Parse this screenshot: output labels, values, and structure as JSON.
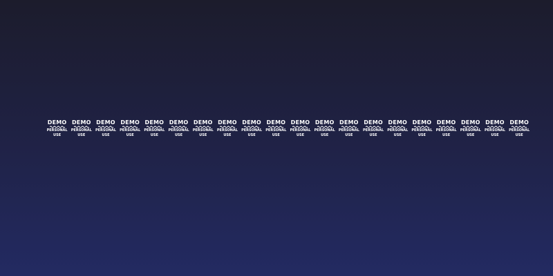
{
  "background": {
    "top_color": "#1c1c2c",
    "bottom_color": "#232a62"
  },
  "stamps": [
    {
      "line1": "DEMO",
      "line2": "PERSONAL",
      "line3": "USE"
    },
    {
      "line1": "DEMO",
      "line2": "PERSONAL",
      "line3": "USE"
    },
    {
      "line1": "DEMO",
      "line2": "PERSONAL",
      "line3": "USE"
    },
    {
      "line1": "DEMO",
      "line2": "PERSONAL",
      "line3": "USE"
    },
    {
      "line1": "DEMO",
      "line2": "PERSONAL",
      "line3": "USE"
    },
    {
      "line1": "DEMO",
      "line2": "PERSONAL",
      "line3": "USE"
    },
    {
      "line1": "DEMO",
      "line2": "PERSONAL",
      "line3": "USE"
    },
    {
      "line1": "DEMO",
      "line2": "PERSONAL",
      "line3": "USE"
    },
    {
      "line1": "DEMO",
      "line2": "PERSONAL",
      "line3": "USE"
    },
    {
      "line1": "DEMO",
      "line2": "PERSONAL",
      "line3": "USE"
    },
    {
      "line1": "DEMO",
      "line2": "PERSONAL",
      "line3": "USE"
    },
    {
      "line1": "DEMO",
      "line2": "PERSONAL",
      "line3": "USE"
    },
    {
      "line1": "DEMO",
      "line2": "PERSONAL",
      "line3": "USE"
    },
    {
      "line1": "DEMO",
      "line2": "PERSONAL",
      "line3": "USE"
    },
    {
      "line1": "DEMO",
      "line2": "PERSONAL",
      "line3": "USE"
    },
    {
      "line1": "DEMO",
      "line2": "PERSONAL",
      "line3": "USE"
    },
    {
      "line1": "DEMO",
      "line2": "PERSONAL",
      "line3": "USE"
    },
    {
      "line1": "DEMO",
      "line2": "PERSONAL",
      "line3": "USE"
    },
    {
      "line1": "DEMO",
      "line2": "PERSONAL",
      "line3": "USE"
    },
    {
      "line1": "DEMO",
      "line2": "PERSONAL",
      "line3": "USE"
    }
  ]
}
